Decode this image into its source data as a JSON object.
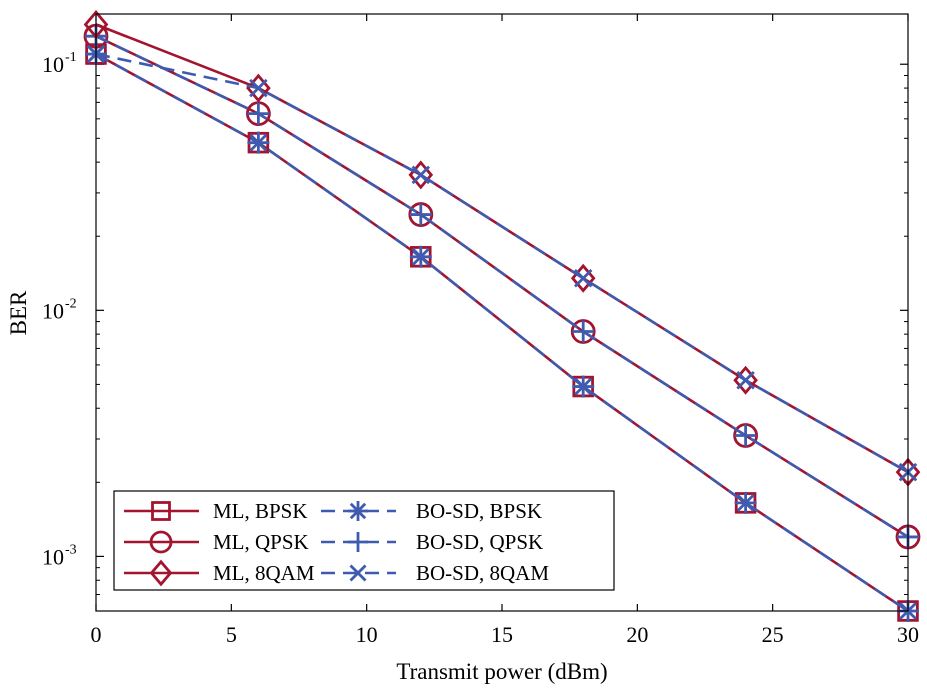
{
  "chart_data": {
    "type": "line",
    "title": "",
    "xlabel": "Transmit power (dBm)",
    "ylabel": "BER",
    "xlim": [
      0,
      30
    ],
    "ylim": [
      0.0006,
      0.16
    ],
    "yscale": "log",
    "grid": false,
    "legend_position": "bottom-left",
    "x": [
      0,
      6,
      12,
      18,
      24,
      30
    ],
    "x_ticks": [
      "0",
      "5",
      "10",
      "15",
      "20",
      "25",
      "30"
    ],
    "y_ticks": [
      {
        "base": "10",
        "exp": "-3"
      },
      {
        "base": "10",
        "exp": "-2"
      },
      {
        "base": "10",
        "exp": "-1"
      }
    ],
    "colors": {
      "ml": "#a2142f",
      "bo": "#3f5bb0"
    },
    "series": [
      {
        "name": "ML, BPSK",
        "marker": "square",
        "style": "solid",
        "color": "#a2142f",
        "values": [
          0.11,
          0.048,
          0.0165,
          0.0049,
          0.00165,
          0.0006
        ]
      },
      {
        "name": "BO-SD, BPSK",
        "marker": "asterisk",
        "style": "dashed",
        "color": "#3f5bb0",
        "values": [
          0.11,
          0.048,
          0.0165,
          0.0049,
          0.00165,
          0.0006
        ]
      },
      {
        "name": "ML, QPSK",
        "marker": "circle",
        "style": "solid",
        "color": "#a2142f",
        "values": [
          0.13,
          0.063,
          0.0245,
          0.0082,
          0.0031,
          0.0012
        ]
      },
      {
        "name": "BO-SD, QPSK",
        "marker": "plus",
        "style": "dashed",
        "color": "#3f5bb0",
        "values": [
          0.13,
          0.063,
          0.0245,
          0.0082,
          0.0031,
          0.0012
        ]
      },
      {
        "name": "ML, 8QAM",
        "marker": "diamond",
        "style": "solid",
        "color": "#a2142f",
        "values": [
          0.145,
          0.08,
          0.0355,
          0.0135,
          0.0052,
          0.0022
        ]
      },
      {
        "name": "BO-SD, 8QAM",
        "marker": "x",
        "style": "dashed",
        "color": "#3f5bb0",
        "values": [
          0.11,
          0.08,
          0.0355,
          0.0135,
          0.0052,
          0.0022
        ]
      }
    ]
  }
}
